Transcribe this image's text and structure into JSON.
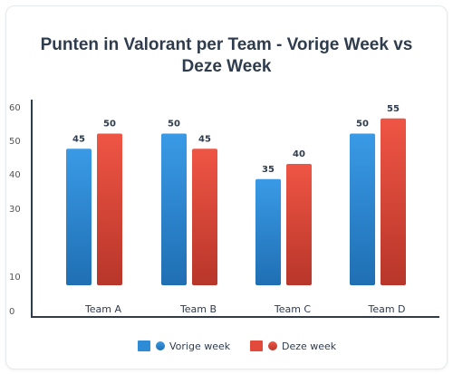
{
  "chart_data": {
    "type": "bar",
    "title": "Punten in Valorant per Team - Vorige Week vs Deze Week",
    "categories": [
      "Team A",
      "Team B",
      "Team C",
      "Team D"
    ],
    "series": [
      {
        "name": "Vorige week",
        "values": [
          45,
          50,
          35,
          50
        ],
        "color": "#2e8bd6"
      },
      {
        "name": "Deze week",
        "values": [
          50,
          45,
          40,
          55
        ],
        "color": "#e24a3b"
      }
    ],
    "y_ticks": [
      0,
      10,
      30,
      40,
      50,
      60
    ],
    "legend_position": "bottom",
    "grid": false
  }
}
